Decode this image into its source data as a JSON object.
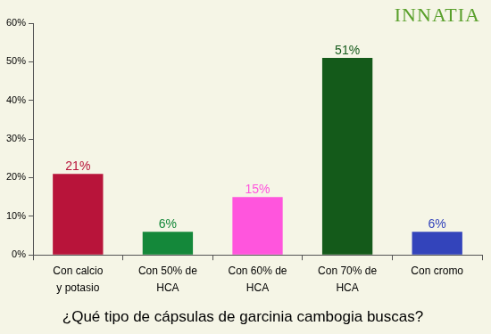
{
  "chart_data": {
    "type": "bar",
    "title": "¿Qué tipo de cápsulas de garcinia cambogia buscas?",
    "annotations": [
      "INNATIA"
    ],
    "categories": [
      [
        "Con calcio",
        "y potasio"
      ],
      [
        "Con 50% de",
        "HCA"
      ],
      [
        "Con 60% de",
        "HCA"
      ],
      [
        "Con 70% de",
        "HCA"
      ],
      [
        "Con cromo"
      ]
    ],
    "values": [
      21,
      6,
      15,
      51,
      6
    ],
    "value_labels": [
      "21%",
      "6%",
      "15%",
      "51%",
      "6%"
    ],
    "colors": [
      "#b8143a",
      "#14883a",
      "#ff55dd",
      "#145a1a",
      "#3344bb"
    ],
    "ylim": [
      0,
      60
    ],
    "yticks": [
      {
        "value": 0,
        "label": "0%"
      },
      {
        "value": 10,
        "label": "10%"
      },
      {
        "value": 20,
        "label": "20%"
      },
      {
        "value": 30,
        "label": "30%"
      },
      {
        "value": 40,
        "label": "40%"
      },
      {
        "value": 50,
        "label": "50%"
      },
      {
        "value": 60,
        "label": "60%"
      }
    ],
    "data_labels": true,
    "grid": false
  }
}
